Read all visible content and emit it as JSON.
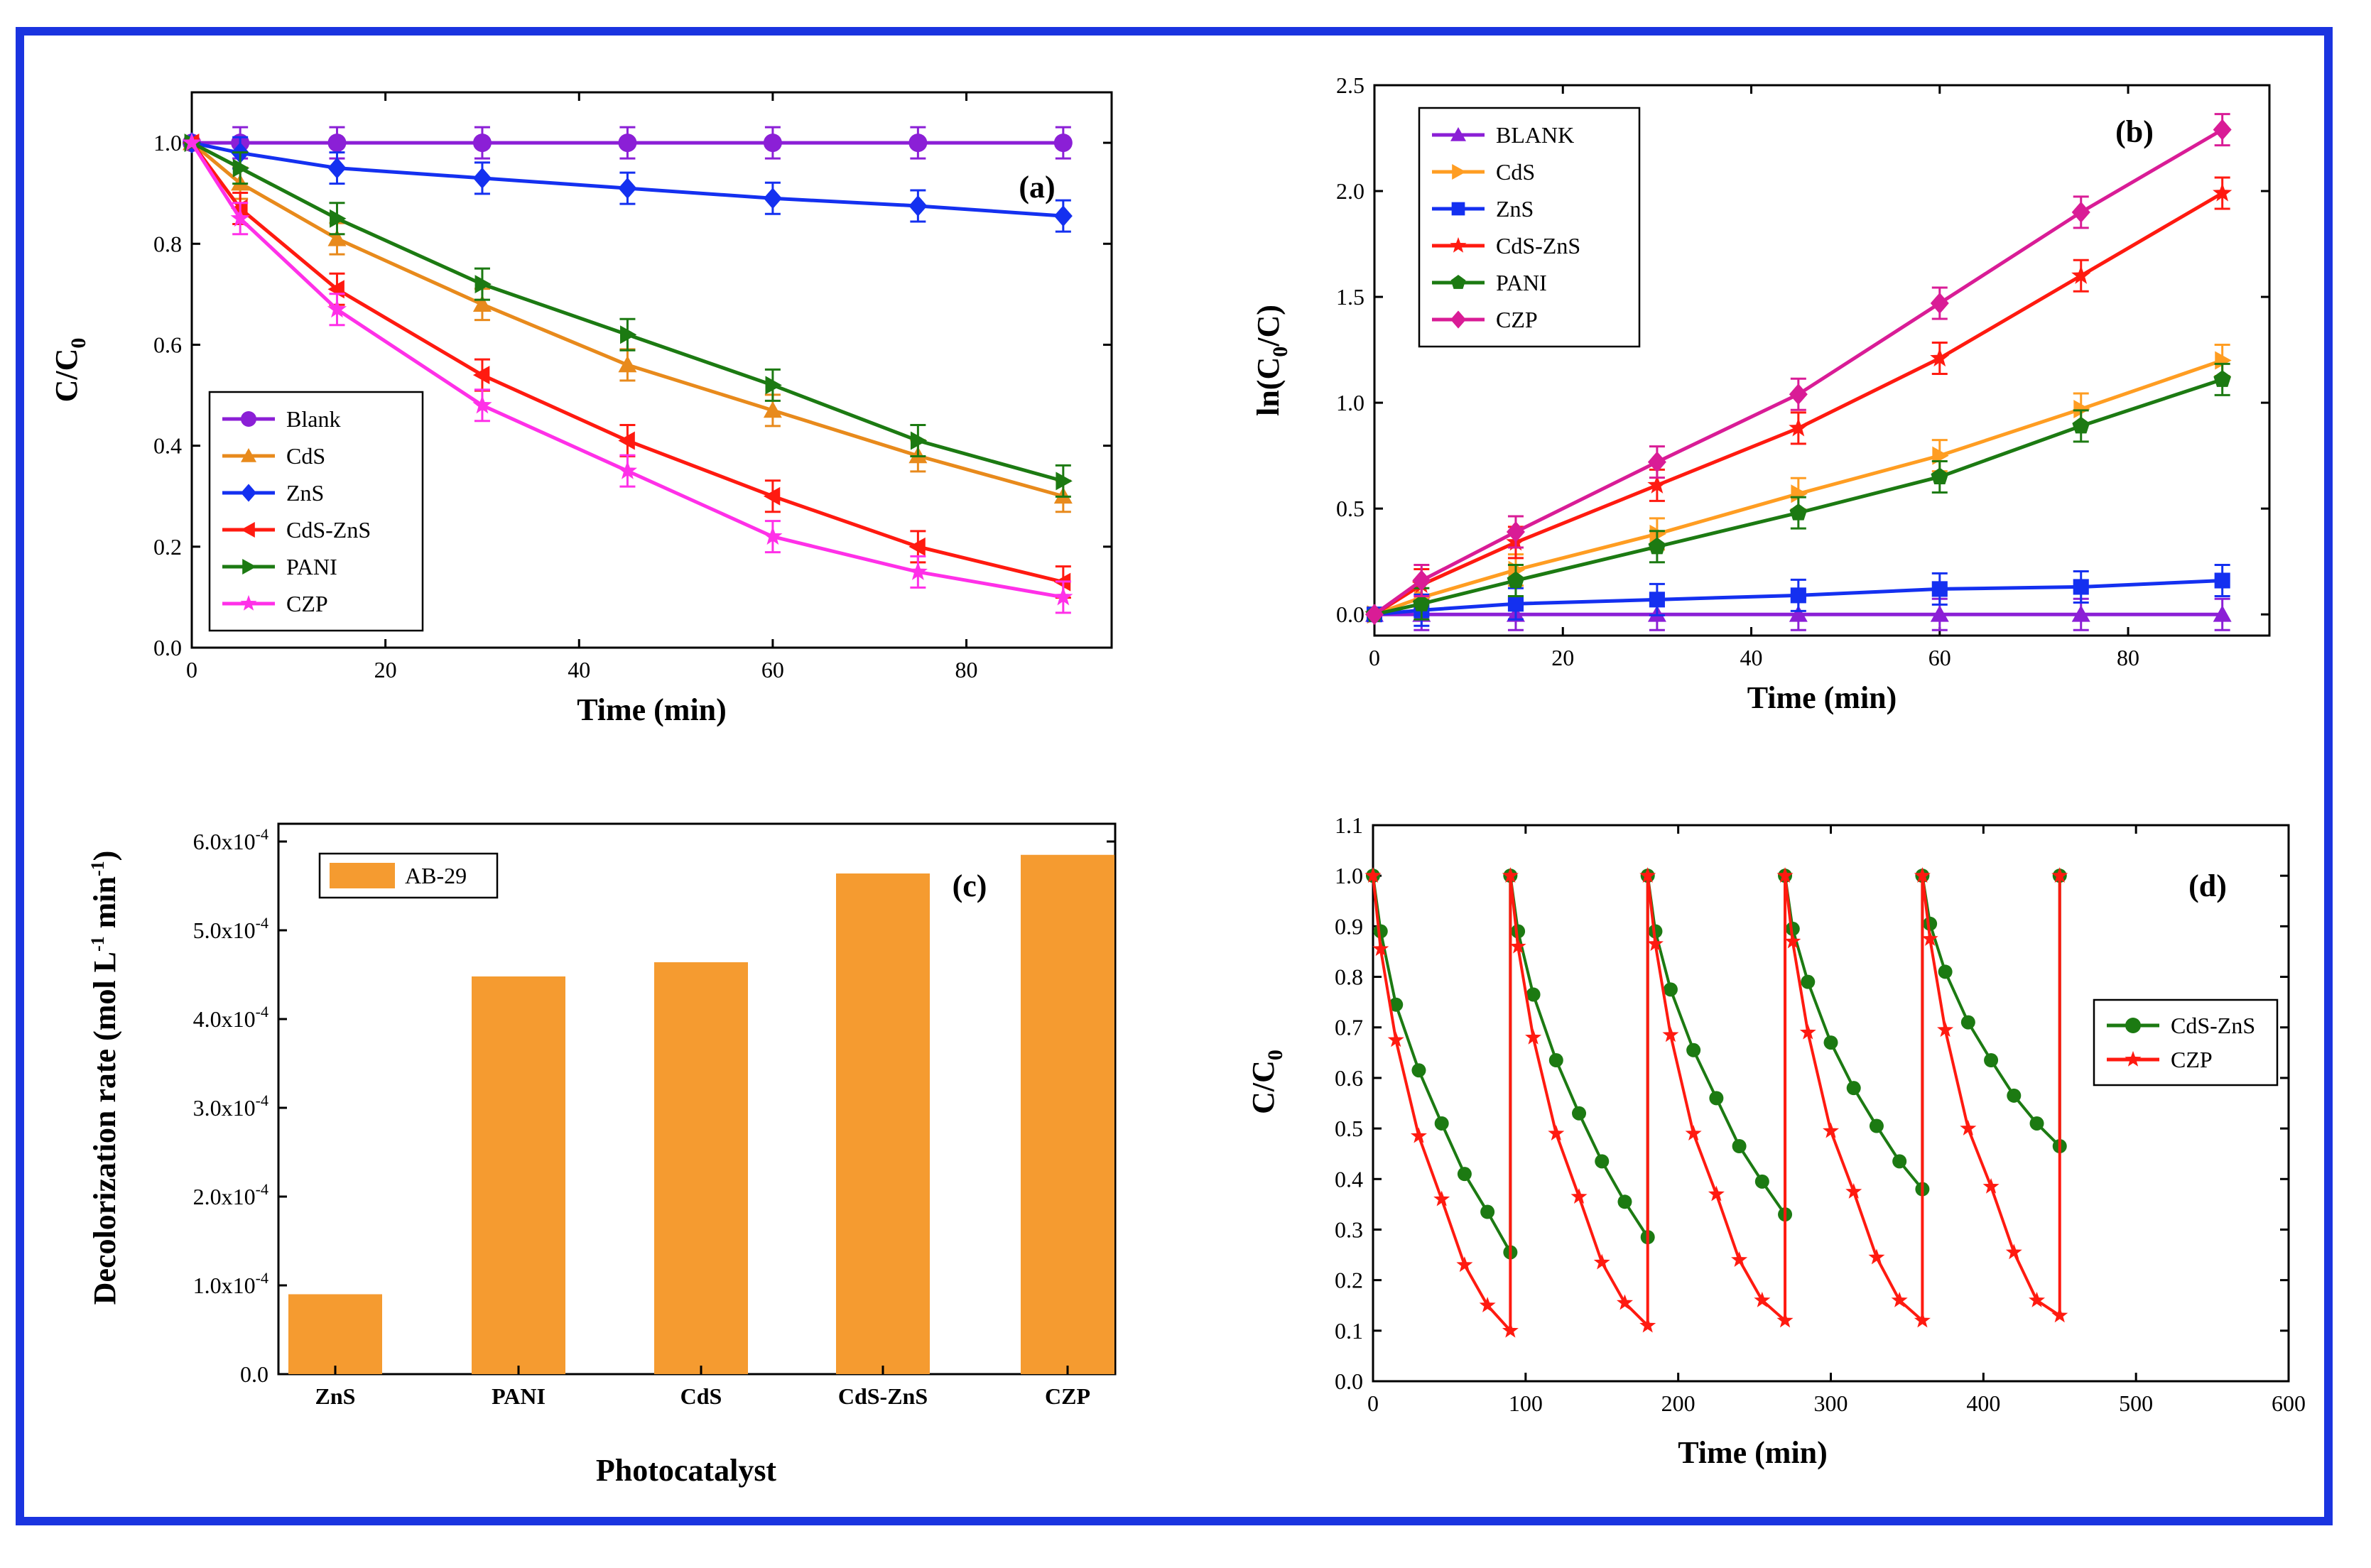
{
  "colors": {
    "frame": "#1a34e0",
    "purple": "#8b1fd6",
    "orange": "#e88a1c",
    "blue": "#1430f0",
    "red": "#ff1a10",
    "green": "#1c7a12",
    "magenta": "#ff30e8",
    "orange_b": "#ff9d22",
    "magenta_b": "#d91c96",
    "bar": "#f59b30"
  },
  "chart_data": [
    {
      "type": "line",
      "panel_label": "(a)",
      "xlabel": "Time (min)",
      "ylabel": "C/C",
      "ylabel_sub": "0",
      "xlim": [
        0,
        95
      ],
      "ylim": [
        0,
        1.1
      ],
      "xticks": [
        0,
        20,
        40,
        60,
        80
      ],
      "xtick_labels": [
        "0",
        "20",
        "40",
        "60",
        "80"
      ],
      "yticks": [
        0,
        0.2,
        0.4,
        0.6,
        0.8,
        1.0
      ],
      "ytick_labels": [
        "0.0",
        "0.2",
        "0.4",
        "0.6",
        "0.8",
        "1.0"
      ],
      "legend_position": "bottom-left",
      "x": [
        0,
        5,
        15,
        30,
        45,
        60,
        75,
        90
      ],
      "series": [
        {
          "name": "Blank",
          "color_key": "purple",
          "marker": "circle",
          "values": [
            1.0,
            1.0,
            1.0,
            1.0,
            1.0,
            1.0,
            1.0,
            1.0
          ]
        },
        {
          "name": "CdS",
          "color_key": "orange",
          "marker": "tri-up",
          "values": [
            1.0,
            0.92,
            0.81,
            0.68,
            0.56,
            0.47,
            0.38,
            0.3
          ]
        },
        {
          "name": "ZnS",
          "color_key": "blue",
          "marker": "diamond",
          "values": [
            1.0,
            0.98,
            0.95,
            0.93,
            0.91,
            0.89,
            0.875,
            0.855
          ]
        },
        {
          "name": "CdS-ZnS",
          "color_key": "red",
          "marker": "tri-left",
          "values": [
            1.0,
            0.87,
            0.71,
            0.54,
            0.41,
            0.3,
            0.2,
            0.13
          ]
        },
        {
          "name": "PANI",
          "color_key": "green",
          "marker": "tri-right",
          "values": [
            1.0,
            0.95,
            0.85,
            0.72,
            0.62,
            0.52,
            0.41,
            0.33
          ]
        },
        {
          "name": "CZP",
          "color_key": "magenta",
          "marker": "star",
          "values": [
            1.0,
            0.85,
            0.67,
            0.48,
            0.35,
            0.22,
            0.15,
            0.1
          ]
        }
      ]
    },
    {
      "type": "line",
      "panel_label": "(b)",
      "xlabel": "Time (min)",
      "ylabel": "ln(C",
      "ylabel_sub": "0",
      "ylabel_end": "/C)",
      "xlim": [
        0,
        95
      ],
      "ylim": [
        -0.1,
        2.5
      ],
      "xticks": [
        0,
        20,
        40,
        60,
        80
      ],
      "xtick_labels": [
        "0",
        "20",
        "40",
        "60",
        "80"
      ],
      "yticks": [
        0,
        0.5,
        1.0,
        1.5,
        2.0,
        2.5
      ],
      "ytick_labels": [
        "0.0",
        "0.5",
        "1.0",
        "1.5",
        "2.0",
        "2.5"
      ],
      "legend_position": "top-left",
      "x": [
        0,
        5,
        15,
        30,
        45,
        60,
        75,
        90
      ],
      "series": [
        {
          "name": "BLANK",
          "color_key": "purple",
          "marker": "tri-up",
          "values": [
            0,
            0,
            0,
            0,
            0,
            0,
            0,
            0
          ]
        },
        {
          "name": "CdS",
          "color_key": "orange_b",
          "marker": "tri-right",
          "values": [
            0,
            0.08,
            0.21,
            0.38,
            0.57,
            0.75,
            0.97,
            1.2
          ]
        },
        {
          "name": "ZnS",
          "color_key": "blue",
          "marker": "square",
          "values": [
            0,
            0.02,
            0.05,
            0.07,
            0.09,
            0.12,
            0.13,
            0.16
          ]
        },
        {
          "name": "CdS-ZnS",
          "color_key": "red",
          "marker": "star",
          "values": [
            0,
            0.14,
            0.34,
            0.61,
            0.88,
            1.21,
            1.6,
            1.99
          ]
        },
        {
          "name": "PANI",
          "color_key": "green",
          "marker": "pentagon",
          "values": [
            0,
            0.05,
            0.16,
            0.32,
            0.48,
            0.65,
            0.89,
            1.11
          ]
        },
        {
          "name": "CZP",
          "color_key": "magenta_b",
          "marker": "diamond",
          "values": [
            0,
            0.16,
            0.39,
            0.72,
            1.04,
            1.47,
            1.9,
            2.29
          ]
        }
      ]
    },
    {
      "type": "bar",
      "panel_label": "(c)",
      "xlabel": "Photocatalyst",
      "ylabel": "Decolorization rate (mol L",
      "ylabel_sup1": "-1",
      "ylabel_mid": " min",
      "ylabel_sup2": "-1",
      "ylabel_end": ")",
      "ylim": [
        0,
        6.2
      ],
      "yticks": [
        0,
        1,
        2,
        3,
        4,
        5,
        6
      ],
      "ytick_labels": [
        "0.0",
        "1.0x10",
        "2.0x10",
        "3.0x10",
        "4.0x10",
        "5.0x10",
        "6.0x10"
      ],
      "ytick_exponent": "-4",
      "legend_position": "top-left",
      "series_name": "AB-29",
      "categories": [
        "ZnS",
        "PANI",
        "CdS",
        "CdS-ZnS",
        "CZP"
      ],
      "values": [
        0.9,
        4.48,
        4.64,
        5.64,
        5.85
      ],
      "value_unit_exponent": -4
    },
    {
      "type": "line",
      "panel_label": "(d)",
      "xlabel": "Time (min)",
      "ylabel": "C/C",
      "ylabel_sub": "0",
      "xlim": [
        0,
        600
      ],
      "ylim": [
        0,
        1.1
      ],
      "xticks": [
        0,
        100,
        200,
        300,
        400,
        500,
        600
      ],
      "xtick_labels": [
        "0",
        "100",
        "200",
        "300",
        "400",
        "500",
        "600"
      ],
      "yticks": [
        0,
        0.1,
        0.2,
        0.3,
        0.4,
        0.5,
        0.6,
        0.7,
        0.8,
        0.9,
        1.0,
        1.1
      ],
      "ytick_labels": [
        "0.0",
        "0.1",
        "0.2",
        "0.3",
        "0.4",
        "0.5",
        "0.6",
        "0.7",
        "0.8",
        "0.9",
        "1.0",
        "1.1"
      ],
      "legend_position": "right",
      "cycle_length": 90,
      "cycle_times": [
        0,
        5,
        15,
        30,
        45,
        60,
        75,
        90
      ],
      "series": [
        {
          "name": "CdS-ZnS",
          "color_key": "green",
          "marker": "circle",
          "cycles": [
            [
              1.0,
              0.89,
              0.745,
              0.615,
              0.51,
              0.41,
              0.335,
              0.255
            ],
            [
              1.0,
              0.89,
              0.765,
              0.635,
              0.53,
              0.435,
              0.355,
              0.285
            ],
            [
              1.0,
              0.89,
              0.775,
              0.655,
              0.56,
              0.465,
              0.395,
              0.33
            ],
            [
              1.0,
              0.895,
              0.79,
              0.67,
              0.58,
              0.505,
              0.435,
              0.38
            ],
            [
              1.0,
              0.905,
              0.81,
              0.71,
              0.635,
              0.565,
              0.51,
              0.465
            ]
          ]
        },
        {
          "name": "CZP",
          "color_key": "red",
          "marker": "star",
          "cycles": [
            [
              1.0,
              0.855,
              0.675,
              0.485,
              0.36,
              0.23,
              0.15,
              0.1
            ],
            [
              1.0,
              0.86,
              0.68,
              0.49,
              0.365,
              0.235,
              0.155,
              0.11
            ],
            [
              1.0,
              0.865,
              0.685,
              0.49,
              0.37,
              0.24,
              0.16,
              0.12
            ],
            [
              1.0,
              0.87,
              0.69,
              0.495,
              0.375,
              0.245,
              0.16,
              0.12
            ],
            [
              1.0,
              0.875,
              0.695,
              0.5,
              0.385,
              0.255,
              0.16,
              0.13
            ]
          ]
        }
      ]
    }
  ]
}
